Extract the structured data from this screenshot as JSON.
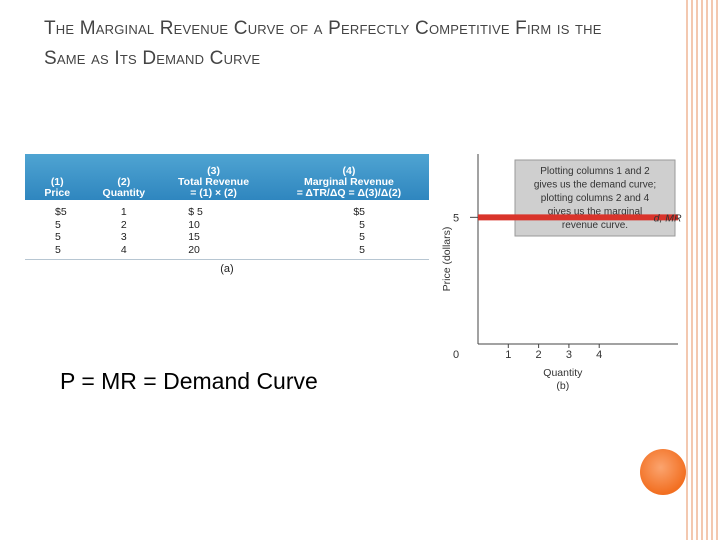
{
  "slide": {
    "title": "The Marginal Revenue Curve of a Perfectly Competitive Firm is the Same as Its Demand Curve",
    "equation": "P = MR = Demand Curve",
    "accent_color": "#f26f21"
  },
  "table": {
    "headers": [
      {
        "num": "(1)",
        "label": "Price"
      },
      {
        "num": "(2)",
        "label": "Quantity"
      },
      {
        "num": "(3)",
        "label": "Total Revenue",
        "formula": "= (1) × (2)"
      },
      {
        "num": "(4)",
        "label": "Marginal Revenue",
        "formula": "= ΔTR/ΔQ = Δ(3)/Δ(2)"
      }
    ],
    "rows": [
      {
        "price": "$5",
        "quantity": "1",
        "total_revenue": "$ 5",
        "marginal_revenue": "$5"
      },
      {
        "price": "5",
        "quantity": "2",
        "total_revenue": "10",
        "marginal_revenue": "5"
      },
      {
        "price": "5",
        "quantity": "3",
        "total_revenue": "15",
        "marginal_revenue": "5"
      },
      {
        "price": "5",
        "quantity": "4",
        "total_revenue": "20",
        "marginal_revenue": "5"
      }
    ],
    "caption": "(a)",
    "header_color": "#3a93c8"
  },
  "chart_data": {
    "type": "line",
    "xlabel": "Quantity",
    "ylabel": "Price (dollars)",
    "caption": "(b)",
    "x_ticks": [
      1,
      2,
      3,
      4
    ],
    "y_ticks": [
      5
    ],
    "origin_label": "0",
    "xlim": [
      0,
      6.6
    ],
    "ylim": [
      0,
      7.5
    ],
    "series": [
      {
        "name": "d, MR",
        "x": [
          0,
          6.6
        ],
        "y": [
          5,
          5
        ],
        "color": "#d9342b"
      }
    ],
    "annotation": "Plotting columns 1 and 2 gives us the demand curve; plotting columns 2 and 4 gives us the marginal revenue curve."
  }
}
